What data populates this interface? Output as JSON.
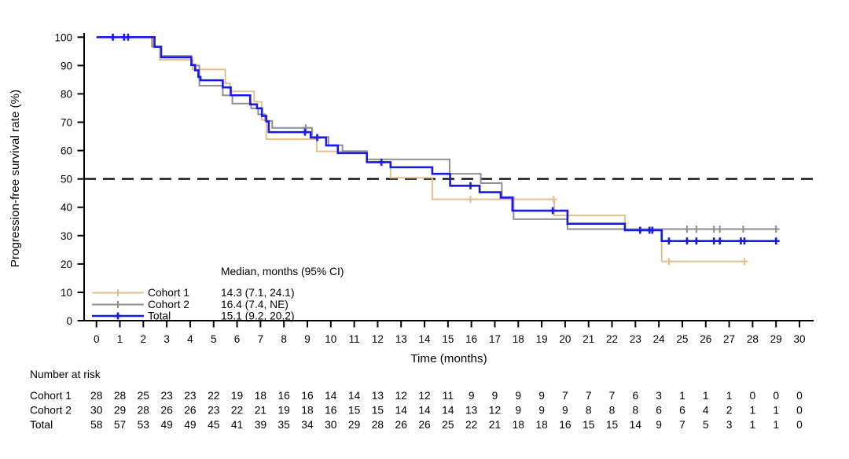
{
  "figure": {
    "background": "#ffffff",
    "axis_color": "#000000"
  },
  "chart_data": {
    "type": "line",
    "subtype": "kaplan_meier_step_survival",
    "title": "",
    "xlabel": "Time (months)",
    "ylabel": "Progression-free survival rate (%)",
    "xlim": [
      0,
      30
    ],
    "ylim": [
      0,
      100
    ],
    "grid": false,
    "xticks": [
      0,
      1,
      2,
      3,
      4,
      5,
      6,
      7,
      8,
      9,
      10,
      11,
      12,
      13,
      14,
      15,
      16,
      17,
      18,
      19,
      20,
      21,
      22,
      23,
      24,
      25,
      26,
      27,
      28,
      29,
      30
    ],
    "yticks": [
      0,
      10,
      20,
      30,
      40,
      50,
      60,
      70,
      80,
      90,
      100
    ],
    "reference_line": {
      "y": 50,
      "style": "dashed",
      "color": "#000000"
    },
    "legend": {
      "header": "Median, months (95% CI)",
      "position": "inside-bottom-left",
      "entries": [
        {
          "label": "Cohort 1",
          "median": "14.3 (7.1, 24.1)"
        },
        {
          "label": "Cohort 2",
          "median": "16.4 (7.4, NE)"
        },
        {
          "label": "Total",
          "median": "15.1 (9.2, 20.2)"
        }
      ]
    },
    "series": [
      {
        "name": "Cohort 1",
        "color": "#e2bf8e",
        "line_width": 2,
        "steps": [
          [
            0,
            100
          ],
          [
            2.43,
            96.4
          ],
          [
            2.7,
            92.0
          ],
          [
            4.1,
            88.6
          ],
          [
            5.5,
            83.7
          ],
          [
            5.7,
            80.9
          ],
          [
            6.73,
            77.2
          ],
          [
            7.05,
            70.8
          ],
          [
            7.25,
            64.0
          ],
          [
            9.4,
            59.7
          ],
          [
            11.54,
            55.8
          ],
          [
            12.55,
            50.4
          ],
          [
            14.33,
            42.8
          ],
          [
            19.54,
            37.1
          ],
          [
            22.55,
            32.0
          ],
          [
            24.12,
            20.9
          ]
        ],
        "end_time": 27.65,
        "censors": [
          [
            15.96,
            42.8
          ],
          [
            19.5,
            42.8
          ],
          [
            24.43,
            20.9
          ],
          [
            27.65,
            20.9
          ]
        ]
      },
      {
        "name": "Cohort 2",
        "color": "#8f8f8f",
        "line_width": 2,
        "steps": [
          [
            0,
            100
          ],
          [
            2.37,
            96.7
          ],
          [
            2.76,
            93.4
          ],
          [
            4.05,
            90.0
          ],
          [
            4.39,
            82.9
          ],
          [
            5.39,
            79.5
          ],
          [
            5.8,
            76.6
          ],
          [
            6.6,
            74.9
          ],
          [
            6.9,
            72.8
          ],
          [
            7.2,
            70.5
          ],
          [
            7.5,
            68.0
          ],
          [
            9.2,
            64.8
          ],
          [
            9.9,
            61.9
          ],
          [
            10.5,
            59.8
          ],
          [
            11.54,
            56.9
          ],
          [
            15.07,
            51.8
          ],
          [
            16.4,
            48.5
          ],
          [
            17.3,
            43.6
          ],
          [
            17.8,
            35.8
          ],
          [
            20.1,
            32.3
          ]
        ],
        "end_time": 29.0,
        "censors": [
          [
            8.93,
            68.0
          ],
          [
            25.2,
            32.3
          ],
          [
            25.6,
            32.3
          ],
          [
            26.35,
            32.3
          ],
          [
            26.6,
            32.3
          ],
          [
            27.6,
            32.3
          ],
          [
            29.0,
            32.3
          ]
        ]
      },
      {
        "name": "Total",
        "color": "#1a1ae8",
        "line_width": 2.6,
        "steps": [
          [
            0,
            100
          ],
          [
            2.48,
            96.6
          ],
          [
            2.76,
            92.9
          ],
          [
            4.05,
            90.2
          ],
          [
            4.21,
            88.3
          ],
          [
            4.35,
            86.0
          ],
          [
            4.44,
            84.8
          ],
          [
            5.39,
            82.3
          ],
          [
            5.73,
            79.5
          ],
          [
            6.56,
            76.3
          ],
          [
            6.85,
            74.9
          ],
          [
            7.06,
            72.2
          ],
          [
            7.25,
            70.3
          ],
          [
            7.35,
            66.5
          ],
          [
            9.14,
            64.6
          ],
          [
            9.8,
            61.8
          ],
          [
            10.3,
            59.1
          ],
          [
            11.54,
            55.9
          ],
          [
            12.55,
            54.1
          ],
          [
            14.33,
            51.8
          ],
          [
            15.09,
            47.6
          ],
          [
            16.35,
            45.3
          ],
          [
            17.25,
            43.4
          ],
          [
            17.75,
            38.8
          ],
          [
            20.1,
            34.2
          ],
          [
            22.55,
            31.9
          ],
          [
            24.12,
            28.1
          ]
        ],
        "end_time": 29.0,
        "censors": [
          [
            0.7,
            100
          ],
          [
            1.18,
            100
          ],
          [
            1.35,
            100
          ],
          [
            8.9,
            66.5
          ],
          [
            9.42,
            64.6
          ],
          [
            12.16,
            55.9
          ],
          [
            15.96,
            47.6
          ],
          [
            19.47,
            38.8
          ],
          [
            23.2,
            31.9
          ],
          [
            23.6,
            31.9
          ],
          [
            23.72,
            31.9
          ],
          [
            24.43,
            28.1
          ],
          [
            25.2,
            28.1
          ],
          [
            25.6,
            28.1
          ],
          [
            26.35,
            28.1
          ],
          [
            26.6,
            28.1
          ],
          [
            27.5,
            28.1
          ],
          [
            27.65,
            28.1
          ],
          [
            29.0,
            28.1
          ]
        ]
      }
    ],
    "number_at_risk": {
      "title": "Number at risk",
      "times": [
        0,
        1,
        2,
        3,
        4,
        5,
        6,
        7,
        8,
        9,
        10,
        11,
        12,
        13,
        14,
        15,
        16,
        17,
        18,
        19,
        20,
        21,
        22,
        23,
        24,
        25,
        26,
        27,
        28,
        29,
        30
      ],
      "rows": [
        {
          "label": "Cohort 1",
          "color": "#e2bf8e",
          "counts": [
            28,
            28,
            25,
            23,
            23,
            22,
            19,
            18,
            16,
            16,
            14,
            14,
            13,
            12,
            12,
            11,
            9,
            9,
            9,
            9,
            7,
            7,
            7,
            6,
            3,
            1,
            1,
            1,
            0,
            0,
            0
          ]
        },
        {
          "label": "Cohort 2",
          "color": "#8f8f8f",
          "counts": [
            30,
            29,
            28,
            26,
            26,
            23,
            22,
            21,
            19,
            18,
            16,
            15,
            15,
            14,
            14,
            14,
            13,
            12,
            9,
            9,
            9,
            8,
            8,
            8,
            6,
            6,
            4,
            2,
            1,
            1,
            0
          ]
        },
        {
          "label": "Total",
          "color": "#1a1ae8",
          "counts": [
            58,
            57,
            53,
            49,
            49,
            45,
            41,
            39,
            35,
            34,
            30,
            29,
            28,
            26,
            26,
            25,
            22,
            21,
            18,
            18,
            16,
            15,
            15,
            14,
            9,
            7,
            5,
            3,
            1,
            1,
            0
          ]
        }
      ]
    }
  }
}
